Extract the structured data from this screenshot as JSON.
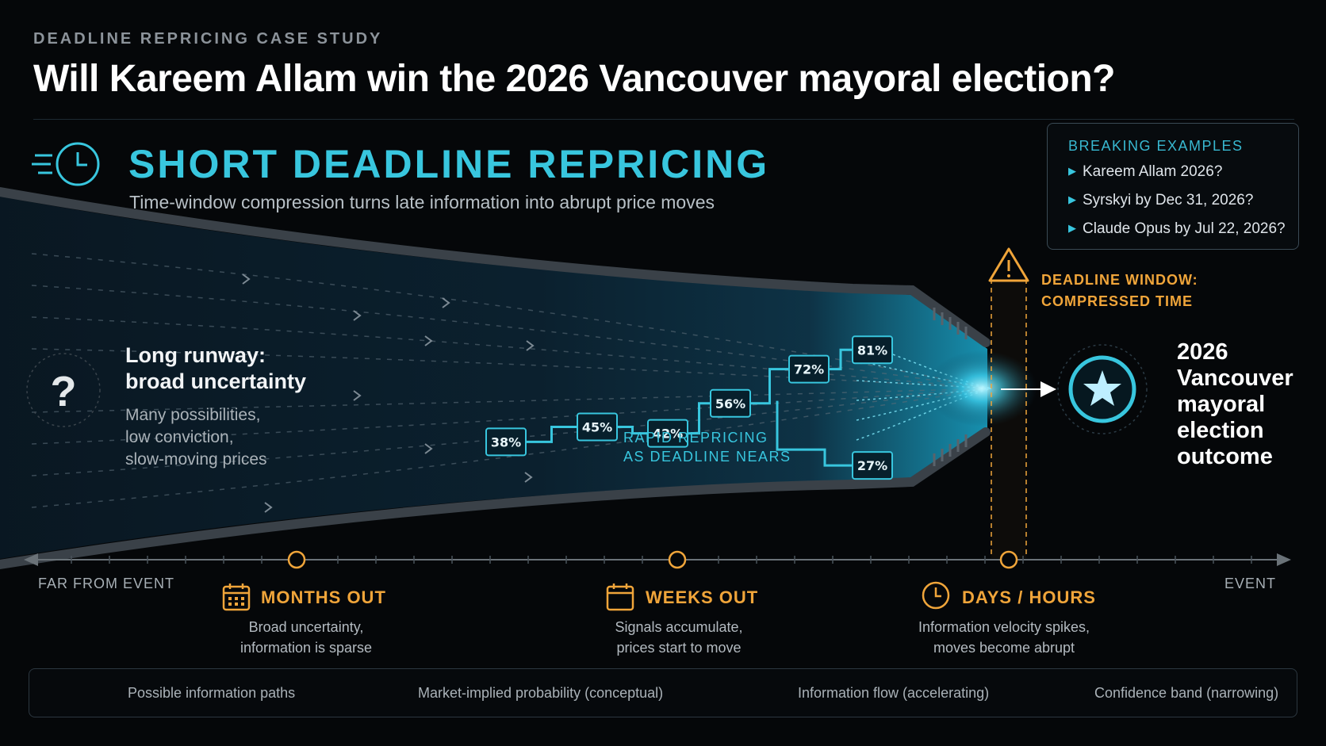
{
  "header": {
    "eyebrow": "DEADLINE REPRICING CASE STUDY",
    "title": "Will Kareem Allam win the 2026 Vancouver mayoral election?"
  },
  "section": {
    "heading": "SHORT DEADLINE REPRICING",
    "subtitle": "Time-window compression turns late information into abrupt price moves"
  },
  "examples": {
    "heading": "BREAKING EXAMPLES",
    "items": [
      "Kareem Allam 2026?",
      "Syrskyi by Dec 31, 2026?",
      "Claude Opus by Jul 22, 2026?"
    ]
  },
  "deadline": {
    "line1": "DEADLINE WINDOW:",
    "line2": "COMPRESSED TIME"
  },
  "left_panel": {
    "heading_line1": "Long runway:",
    "heading_line2": "broad uncertainty",
    "desc_line1": "Many possibilities,",
    "desc_line2": "low conviction,",
    "desc_line3": "slow-moving prices"
  },
  "rapid": {
    "line1": "RAPID REPRICING",
    "line2": "AS DEADLINE NEARS"
  },
  "probabilities": [
    {
      "label": "38%",
      "value": 38
    },
    {
      "label": "45%",
      "value": 45
    },
    {
      "label": "42%",
      "value": 42
    },
    {
      "label": "56%",
      "value": 56
    },
    {
      "label": "72%",
      "value": 72
    },
    {
      "label": "81%",
      "value": 81
    },
    {
      "label": "27%",
      "value": 27
    }
  ],
  "outcome": {
    "line1": "2026",
    "line2": "Vancouver",
    "line3": "mayoral",
    "line4": "election",
    "line5": "outcome"
  },
  "timeline": {
    "start_label": "FAR FROM EVENT",
    "end_label": "EVENT",
    "phases": [
      {
        "title": "MONTHS OUT",
        "desc_line1": "Broad uncertainty,",
        "desc_line2": "information is sparse",
        "icon": "calendar-grid-icon"
      },
      {
        "title": "WEEKS OUT",
        "desc_line1": "Signals accumulate,",
        "desc_line2": "prices start to move",
        "icon": "calendar-icon"
      },
      {
        "title": "DAYS / HOURS",
        "desc_line1": "Information velocity spikes,",
        "desc_line2": "moves become abrupt",
        "icon": "clock-icon"
      }
    ]
  },
  "legend": [
    {
      "label": "Possible information paths",
      "icon": "dashed-line-icon"
    },
    {
      "label": "Market-implied probability (conceptual)",
      "icon": "step-line-icon"
    },
    {
      "label": "Information flow (accelerating)",
      "icon": "arrow-stream-icon"
    },
    {
      "label": "Confidence band (narrowing)",
      "icon": "band-rect-icon"
    }
  ],
  "colors": {
    "accent_cyan": "#38c6de",
    "deadline_amber": "#f0a53a",
    "background": "#050709"
  }
}
